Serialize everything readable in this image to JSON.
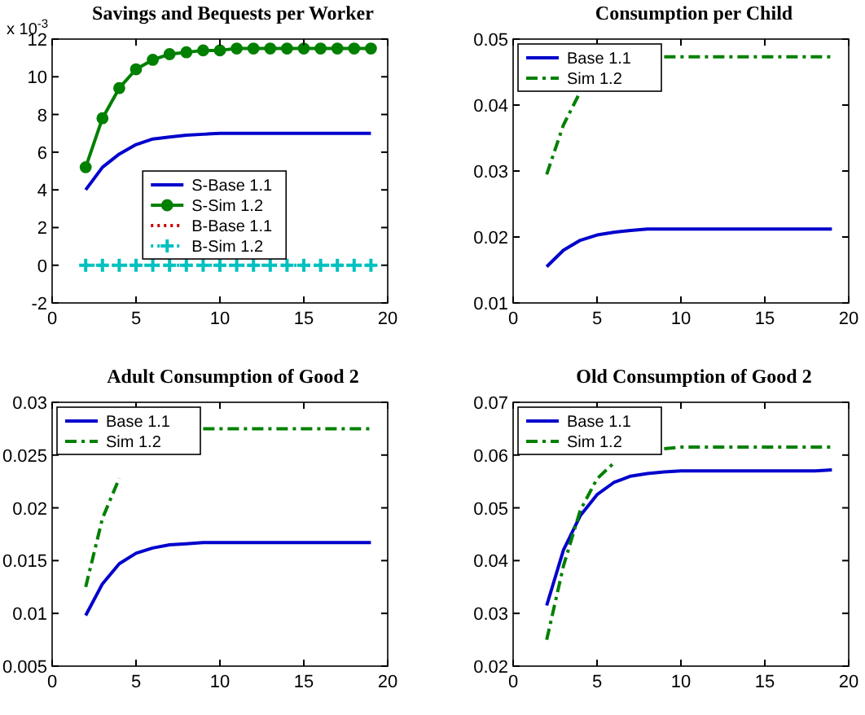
{
  "chart_data": [
    {
      "type": "line",
      "title": "Savings and Bequests per Worker",
      "annotations": [
        "x 10$^{-3}$"
      ],
      "x": [
        2,
        3,
        4,
        5,
        6,
        7,
        8,
        9,
        10,
        11,
        12,
        13,
        14,
        15,
        16,
        17,
        18,
        19
      ],
      "xlim": [
        0,
        20
      ],
      "xticks": [
        0,
        5,
        10,
        15,
        20
      ],
      "ylim": [
        -2,
        12
      ],
      "yticks": [
        -2,
        0,
        2,
        4,
        6,
        8,
        10,
        12
      ],
      "legend": "center",
      "series": [
        {
          "name": "S-Base 1.1",
          "color": "#0000cc",
          "line_style": "solid",
          "values": [
            4.0,
            5.2,
            5.9,
            6.4,
            6.7,
            6.8,
            6.9,
            6.95,
            7.0,
            7.0,
            7.0,
            7.0,
            7.0,
            7.0,
            7.0,
            7.0,
            7.0,
            7.0
          ]
        },
        {
          "name": "S-Sim 1.2",
          "color": "#008000",
          "line_style": "solid",
          "marker": "circle",
          "values": [
            5.2,
            7.8,
            9.4,
            10.4,
            10.9,
            11.2,
            11.3,
            11.4,
            11.4,
            11.5,
            11.5,
            11.5,
            11.5,
            11.5,
            11.5,
            11.5,
            11.5,
            11.5
          ]
        },
        {
          "name": "B-Base 1.1",
          "color": "#cc0000",
          "line_style": "dotted",
          "values": [
            null,
            null,
            null,
            null,
            null,
            null,
            null,
            null,
            null,
            null,
            null,
            null,
            null,
            null,
            null,
            null,
            null,
            null
          ]
        },
        {
          "name": "B-Sim 1.2",
          "color": "#00c0c0",
          "line_style": "dotted",
          "marker": "cross",
          "values": [
            0,
            0,
            0,
            0,
            0,
            0,
            0,
            0,
            0,
            0,
            0,
            0,
            0,
            0,
            0,
            0,
            0,
            0
          ]
        }
      ]
    },
    {
      "type": "line",
      "title": "Consumption per Child",
      "x": [
        2,
        3,
        4,
        5,
        6,
        7,
        8,
        9,
        10,
        11,
        12,
        13,
        14,
        15,
        16,
        17,
        18,
        19
      ],
      "xlim": [
        0,
        20
      ],
      "xticks": [
        0,
        5,
        10,
        15,
        20
      ],
      "ylim": [
        0.01,
        0.05
      ],
      "yticks": [
        0.01,
        0.02,
        0.03,
        0.04,
        0.05
      ],
      "legend": "top left",
      "series": [
        {
          "name": "Base 1.1",
          "color": "#0000cc",
          "line_style": "solid",
          "values": [
            0.0155,
            0.018,
            0.0195,
            0.0203,
            0.0207,
            0.021,
            0.0212,
            0.0212,
            0.0212,
            0.0212,
            0.0212,
            0.0212,
            0.0212,
            0.0212,
            0.0212,
            0.0212,
            0.0212,
            0.0212
          ]
        },
        {
          "name": "Sim 1.2",
          "color": "#008000",
          "line_style": "dashed",
          "values": [
            0.0295,
            0.037,
            0.042,
            null,
            null,
            null,
            null,
            0.0473,
            0.0473,
            0.0473,
            0.0473,
            0.0473,
            0.0473,
            0.0473,
            0.0473,
            0.0473,
            0.0473,
            0.0473
          ]
        }
      ]
    },
    {
      "type": "line",
      "title": "Adult Consumption of Good 2",
      "x": [
        2,
        3,
        4,
        5,
        6,
        7,
        8,
        9,
        10,
        11,
        12,
        13,
        14,
        15,
        16,
        17,
        18,
        19
      ],
      "xlim": [
        0,
        20
      ],
      "xticks": [
        0,
        5,
        10,
        15,
        20
      ],
      "ylim": [
        0.005,
        0.03
      ],
      "yticks": [
        0.005,
        0.01,
        0.015,
        0.02,
        0.025,
        0.03
      ],
      "legend": "top left",
      "series": [
        {
          "name": "Base 1.1",
          "color": "#0000cc",
          "line_style": "solid",
          "values": [
            0.0098,
            0.0128,
            0.0147,
            0.0157,
            0.0162,
            0.0165,
            0.0166,
            0.0167,
            0.0167,
            0.0167,
            0.0167,
            0.0167,
            0.0167,
            0.0167,
            0.0167,
            0.0167,
            0.0167,
            0.0167
          ]
        },
        {
          "name": "Sim 1.2",
          "color": "#008000",
          "line_style": "dashed",
          "values": [
            0.0125,
            0.019,
            0.0228,
            null,
            null,
            null,
            null,
            0.0275,
            0.0275,
            0.0275,
            0.0275,
            0.0275,
            0.0275,
            0.0275,
            0.0275,
            0.0275,
            0.0275,
            0.0275
          ]
        }
      ]
    },
    {
      "type": "line",
      "title": "Old Consumption of Good 2",
      "x": [
        2,
        3,
        4,
        5,
        6,
        7,
        8,
        9,
        10,
        11,
        12,
        13,
        14,
        15,
        16,
        17,
        18,
        19
      ],
      "xlim": [
        0,
        20
      ],
      "xticks": [
        0,
        5,
        10,
        15,
        20
      ],
      "ylim": [
        0.02,
        0.07
      ],
      "yticks": [
        0.02,
        0.03,
        0.04,
        0.05,
        0.06,
        0.07
      ],
      "legend": "top left",
      "series": [
        {
          "name": "Base 1.1",
          "color": "#0000cc",
          "line_style": "solid",
          "values": [
            0.0315,
            0.042,
            0.0485,
            0.0525,
            0.0548,
            0.056,
            0.0565,
            0.0568,
            0.057,
            0.057,
            0.057,
            0.057,
            0.057,
            0.057,
            0.057,
            0.057,
            0.057,
            0.0572
          ]
        },
        {
          "name": "Sim 1.2",
          "color": "#008000",
          "line_style": "dashed",
          "values": [
            0.025,
            0.039,
            0.0495,
            0.0555,
            0.0585,
            null,
            null,
            0.0612,
            0.0615,
            0.0615,
            0.0615,
            0.0615,
            0.0615,
            0.0615,
            0.0615,
            0.0615,
            0.0615,
            0.0615
          ]
        }
      ]
    }
  ]
}
